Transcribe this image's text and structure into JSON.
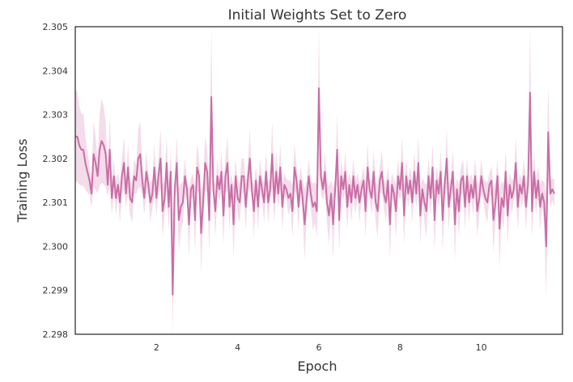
{
  "chart_data": {
    "type": "line",
    "title": "Initial Weights Set to Zero",
    "xlabel": "Epoch",
    "ylabel": "Training Loss",
    "xlim": [
      0,
      12
    ],
    "ylim": [
      2.298,
      2.305
    ],
    "xticks": [
      "2",
      "4",
      "6",
      "8",
      "10"
    ],
    "yticks": [
      "2.298",
      "2.299",
      "2.300",
      "2.301",
      "2.302",
      "2.303",
      "2.304",
      "2.305"
    ],
    "grid": false,
    "colors": {
      "line": "#c96ea6",
      "band": "#f2d6e6",
      "frame": "#222222"
    },
    "series": [
      {
        "x_start": 0,
        "x_step": 0.05,
        "values": [
          2.3025,
          2.3025,
          2.3023,
          2.3022,
          2.3022,
          2.3019,
          2.3017,
          2.3015,
          2.3012,
          2.3021,
          2.3019,
          2.3016,
          2.3022,
          2.3024,
          2.3023,
          2.3021,
          2.3014,
          2.3022,
          2.3011,
          2.3016,
          2.3011,
          2.3014,
          2.301,
          2.3016,
          2.3019,
          2.3012,
          2.3018,
          2.3011,
          2.301,
          2.3016,
          2.3015,
          2.302,
          2.3021,
          2.3015,
          2.3011,
          2.3017,
          2.3014,
          2.301,
          2.3012,
          2.3018,
          2.3011,
          2.3016,
          2.302,
          2.3008,
          2.3011,
          2.3019,
          2.3009,
          2.3017,
          2.2989,
          2.3013,
          2.3019,
          2.3006,
          2.3009,
          2.301,
          2.3016,
          2.3013,
          2.3005,
          2.3013,
          2.3014,
          2.3006,
          2.3018,
          2.3016,
          2.3003,
          2.301,
          2.3019,
          2.3017,
          2.3006,
          2.3034,
          2.3013,
          2.3008,
          2.3016,
          2.3013,
          2.3017,
          2.3007,
          2.3016,
          2.3019,
          2.3009,
          2.3014,
          2.3005,
          2.3016,
          2.3011,
          2.301,
          2.3016,
          2.3016,
          2.3009,
          2.3015,
          2.302,
          2.3013,
          2.3008,
          2.3015,
          2.3009,
          2.3016,
          2.3013,
          2.301,
          2.3017,
          2.301,
          2.3013,
          2.3021,
          2.301,
          2.3017,
          2.3012,
          2.3018,
          2.3009,
          2.3014,
          2.3013,
          2.3011,
          2.3012,
          2.3008,
          2.3018,
          2.3015,
          2.3009,
          2.3015,
          2.3011,
          2.3005,
          2.3011,
          2.3016,
          2.3012,
          2.3009,
          2.301,
          2.3008,
          2.3036,
          2.3016,
          2.3013,
          2.3017,
          2.301,
          2.3007,
          2.3012,
          2.3005,
          2.3013,
          2.3022,
          2.3006,
          2.3016,
          2.3013,
          2.3017,
          2.3009,
          2.3014,
          2.301,
          2.3016,
          2.3011,
          2.3014,
          2.301,
          2.3013,
          2.3015,
          2.3008,
          2.3018,
          2.3013,
          2.3011,
          2.3017,
          2.301,
          2.3008,
          2.3015,
          2.3017,
          2.3012,
          2.301,
          2.3015,
          2.3005,
          2.3014,
          2.3012,
          2.3008,
          2.3016,
          2.3013,
          2.3019,
          2.3007,
          2.3016,
          2.3012,
          2.3015,
          2.301,
          2.3017,
          2.3012,
          2.3019,
          2.3007,
          2.3013,
          2.301,
          2.3008,
          2.3016,
          2.3011,
          2.3018,
          2.3006,
          2.3015,
          2.3012,
          2.3017,
          2.3006,
          2.3014,
          2.302,
          2.3009,
          2.3013,
          2.3017,
          2.3005,
          2.3013,
          2.3008,
          2.3015,
          2.3016,
          2.3009,
          2.3016,
          2.301,
          2.3014,
          2.3011,
          2.3016,
          2.3008,
          2.3011,
          2.3016,
          2.3013,
          2.3011,
          2.301,
          2.3014,
          2.3015,
          2.3006,
          2.301,
          2.3016,
          2.3004,
          2.3011,
          2.3009,
          2.3017,
          2.3007,
          2.3014,
          2.3011,
          2.3013,
          2.3019,
          2.3009,
          2.3014,
          2.3012,
          2.3016,
          2.3009,
          2.3014,
          2.3035,
          2.3008,
          2.3017,
          2.3011,
          2.3015,
          2.3009,
          2.3012,
          2.301,
          2.3,
          2.3026,
          2.3012,
          2.3013,
          2.3012
        ]
      }
    ]
  }
}
